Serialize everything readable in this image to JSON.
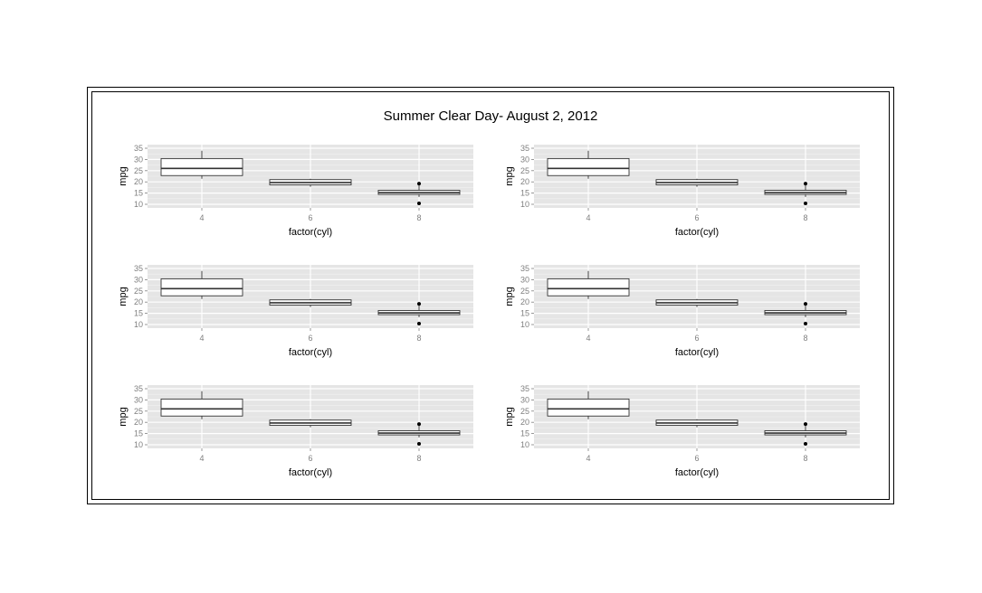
{
  "title": "Summer Clear Day- August 2, 2012",
  "chart_data": [
    {
      "type": "boxplot",
      "xlabel": "factor(cyl)",
      "ylabel": "mpg",
      "categories": [
        "4",
        "6",
        "8"
      ],
      "ylim": [
        10,
        35
      ],
      "yticks": [
        10,
        15,
        20,
        25,
        30,
        35
      ],
      "boxes": [
        {
          "min": 21.4,
          "q1": 22.8,
          "median": 26.0,
          "q3": 30.4,
          "max": 33.9,
          "outliers": []
        },
        {
          "min": 17.8,
          "q1": 18.65,
          "median": 19.7,
          "q3": 21.0,
          "max": 21.4,
          "outliers": []
        },
        {
          "min": 13.3,
          "q1": 14.4,
          "median": 15.2,
          "q3": 16.25,
          "max": 18.7,
          "outliers": [
            19.2,
            10.4
          ]
        }
      ],
      "grid": true
    },
    {
      "type": "boxplot",
      "xlabel": "factor(cyl)",
      "ylabel": "mpg",
      "categories": [
        "4",
        "6",
        "8"
      ],
      "ylim": [
        10,
        35
      ],
      "yticks": [
        10,
        15,
        20,
        25,
        30,
        35
      ],
      "boxes": [
        {
          "min": 21.4,
          "q1": 22.8,
          "median": 26.0,
          "q3": 30.4,
          "max": 33.9,
          "outliers": []
        },
        {
          "min": 17.8,
          "q1": 18.65,
          "median": 19.7,
          "q3": 21.0,
          "max": 21.4,
          "outliers": []
        },
        {
          "min": 13.3,
          "q1": 14.4,
          "median": 15.2,
          "q3": 16.25,
          "max": 18.7,
          "outliers": [
            19.2,
            10.4
          ]
        }
      ],
      "grid": true
    },
    {
      "type": "boxplot",
      "xlabel": "factor(cyl)",
      "ylabel": "mpg",
      "categories": [
        "4",
        "6",
        "8"
      ],
      "ylim": [
        10,
        35
      ],
      "yticks": [
        10,
        15,
        20,
        25,
        30,
        35
      ],
      "boxes": [
        {
          "min": 21.4,
          "q1": 22.8,
          "median": 26.0,
          "q3": 30.4,
          "max": 33.9,
          "outliers": []
        },
        {
          "min": 17.8,
          "q1": 18.65,
          "median": 19.7,
          "q3": 21.0,
          "max": 21.4,
          "outliers": []
        },
        {
          "min": 13.3,
          "q1": 14.4,
          "median": 15.2,
          "q3": 16.25,
          "max": 18.7,
          "outliers": [
            19.2,
            10.4
          ]
        }
      ],
      "grid": true
    },
    {
      "type": "boxplot",
      "xlabel": "factor(cyl)",
      "ylabel": "mpg",
      "categories": [
        "4",
        "6",
        "8"
      ],
      "ylim": [
        10,
        35
      ],
      "yticks": [
        10,
        15,
        20,
        25,
        30,
        35
      ],
      "boxes": [
        {
          "min": 21.4,
          "q1": 22.8,
          "median": 26.0,
          "q3": 30.4,
          "max": 33.9,
          "outliers": []
        },
        {
          "min": 17.8,
          "q1": 18.65,
          "median": 19.7,
          "q3": 21.0,
          "max": 21.4,
          "outliers": []
        },
        {
          "min": 13.3,
          "q1": 14.4,
          "median": 15.2,
          "q3": 16.25,
          "max": 18.7,
          "outliers": [
            19.2,
            10.4
          ]
        }
      ],
      "grid": true
    },
    {
      "type": "boxplot",
      "xlabel": "factor(cyl)",
      "ylabel": "mpg",
      "categories": [
        "4",
        "6",
        "8"
      ],
      "ylim": [
        10,
        35
      ],
      "yticks": [
        10,
        15,
        20,
        25,
        30,
        35
      ],
      "boxes": [
        {
          "min": 21.4,
          "q1": 22.8,
          "median": 26.0,
          "q3": 30.4,
          "max": 33.9,
          "outliers": []
        },
        {
          "min": 17.8,
          "q1": 18.65,
          "median": 19.7,
          "q3": 21.0,
          "max": 21.4,
          "outliers": []
        },
        {
          "min": 13.3,
          "q1": 14.4,
          "median": 15.2,
          "q3": 16.25,
          "max": 18.7,
          "outliers": [
            19.2,
            10.4
          ]
        }
      ],
      "grid": true
    },
    {
      "type": "boxplot",
      "xlabel": "factor(cyl)",
      "ylabel": "mpg",
      "categories": [
        "4",
        "6",
        "8"
      ],
      "ylim": [
        10,
        35
      ],
      "yticks": [
        10,
        15,
        20,
        25,
        30,
        35
      ],
      "boxes": [
        {
          "min": 21.4,
          "q1": 22.8,
          "median": 26.0,
          "q3": 30.4,
          "max": 33.9,
          "outliers": []
        },
        {
          "min": 17.8,
          "q1": 18.65,
          "median": 19.7,
          "q3": 21.0,
          "max": 21.4,
          "outliers": []
        },
        {
          "min": 13.3,
          "q1": 14.4,
          "median": 15.2,
          "q3": 16.25,
          "max": 18.7,
          "outliers": [
            19.2,
            10.4
          ]
        }
      ],
      "grid": true
    }
  ],
  "colors": {
    "panel_background": "#e5e5e5",
    "grid_major": "#ffffff",
    "grid_minor": "#f2f2f2",
    "box_fill": "#ffffff",
    "box_stroke": "#333333",
    "tick_text": "#7f7f7f"
  }
}
